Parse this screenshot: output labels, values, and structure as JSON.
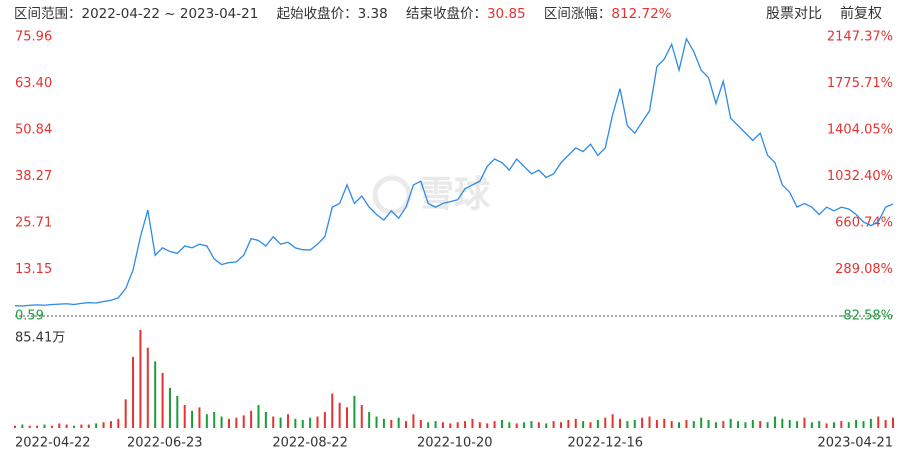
{
  "header": {
    "range_label": "区间范围：",
    "range": "2022-04-22 ~ 2023-04-21",
    "start_label": "起始收盘价：",
    "start_close": "3.38",
    "end_label": "结束收盘价：",
    "end_close": "30.85",
    "change_label": "区间涨幅：",
    "change": "812.72%",
    "compare_button": "股票对比",
    "adjust_button": "前复权"
  },
  "chart_data": {
    "type": "line",
    "watermark": "雪球",
    "series": [
      {
        "color": "#2c8ae8",
        "values": [
          3.38,
          3.3,
          3.5,
          3.6,
          3.5,
          3.7,
          3.8,
          3.9,
          3.7,
          4.0,
          4.2,
          4.1,
          4.5,
          4.8,
          5.5,
          8,
          13,
          22,
          29.2,
          17,
          19,
          18,
          17.5,
          19.5,
          19,
          20,
          19.5,
          16,
          14.5,
          15,
          15.2,
          17,
          21.5,
          21,
          19.5,
          22,
          20,
          20.5,
          19,
          18.5,
          18.4,
          20,
          22,
          30,
          31,
          36,
          31,
          33,
          30,
          28,
          26.5,
          29,
          27,
          30,
          36,
          37,
          31,
          30,
          31,
          31.5,
          32,
          35,
          36,
          37,
          41,
          43,
          42,
          40,
          43,
          41,
          39,
          40,
          38,
          39,
          42,
          44,
          46,
          45,
          47,
          44,
          46,
          55,
          62,
          52,
          50,
          53,
          56,
          68,
          70,
          74,
          67,
          75.5,
          72,
          67,
          65,
          58,
          64,
          54,
          52,
          50,
          48,
          50,
          44,
          42,
          36,
          34,
          30,
          31,
          30,
          28,
          30,
          29,
          30,
          29.5,
          28,
          26,
          25,
          26,
          30,
          30.85
        ]
      }
    ],
    "xlim": [
      0,
      119
    ],
    "xticks": [
      {
        "value": 0,
        "label": "2022-04-22"
      },
      {
        "value": 20.3,
        "label": "2022-06-23"
      },
      {
        "value": 40,
        "label": "2022-08-22"
      },
      {
        "value": 59.6,
        "label": "2022-10-20"
      },
      {
        "value": 80,
        "label": "2022-12-16"
      },
      {
        "value": 119,
        "label": "2023-04-21"
      }
    ],
    "ylim": [
      0.59,
      75.96
    ],
    "yticks": [
      {
        "value": 75.96,
        "label": "75.96"
      },
      {
        "value": 63.4,
        "label": "63.40"
      },
      {
        "value": 50.84,
        "label": "50.84"
      },
      {
        "value": 38.27,
        "label": "38.27"
      },
      {
        "value": 25.71,
        "label": "25.71"
      },
      {
        "value": 13.15,
        "label": "13.15"
      },
      {
        "value": 0.59,
        "label": "0.59"
      }
    ],
    "y2lim": [
      -82.58,
      2147.37
    ],
    "y2ticks": [
      {
        "value": 2147.37,
        "label": "2147.37%"
      },
      {
        "value": 1775.71,
        "label": "1775.71%"
      },
      {
        "value": 1404.05,
        "label": "1404.05%"
      },
      {
        "value": 1032.4,
        "label": "1032.40%"
      },
      {
        "value": 660.74,
        "label": "660.74%"
      },
      {
        "value": 289.08,
        "label": "289.08%"
      },
      {
        "value": -82.58,
        "label": "-82.58%"
      }
    ],
    "up_color": "#e5332f",
    "down_color": "#1a9c3a",
    "volume_max_label": "85.41万",
    "volume_ylim": [
      0,
      85.41
    ],
    "volume_values": [
      2,
      3,
      2,
      2,
      3,
      2,
      4,
      3,
      2,
      3,
      3,
      4,
      5,
      6,
      8,
      25,
      62,
      85.41,
      70,
      58,
      48,
      35,
      28,
      20,
      15,
      18,
      12,
      14,
      10,
      8,
      9,
      11,
      15,
      20,
      14,
      10,
      9,
      12,
      8,
      7,
      9,
      10,
      14,
      30,
      22,
      18,
      28,
      20,
      14,
      10,
      8,
      7,
      9,
      6,
      12,
      7,
      5,
      6,
      5,
      4,
      5,
      6,
      8,
      5,
      4,
      6,
      7,
      5,
      4,
      5,
      6,
      5,
      4,
      6,
      5,
      7,
      8,
      6,
      5,
      7,
      9,
      12,
      8,
      6,
      7,
      9,
      10,
      7,
      8,
      6,
      5,
      7,
      6,
      9,
      7,
      5,
      6,
      8,
      6,
      5,
      7,
      6,
      5,
      10,
      8,
      7,
      6,
      9,
      5,
      6,
      4,
      5,
      6,
      5,
      7,
      6,
      8,
      10,
      7,
      9
    ]
  }
}
